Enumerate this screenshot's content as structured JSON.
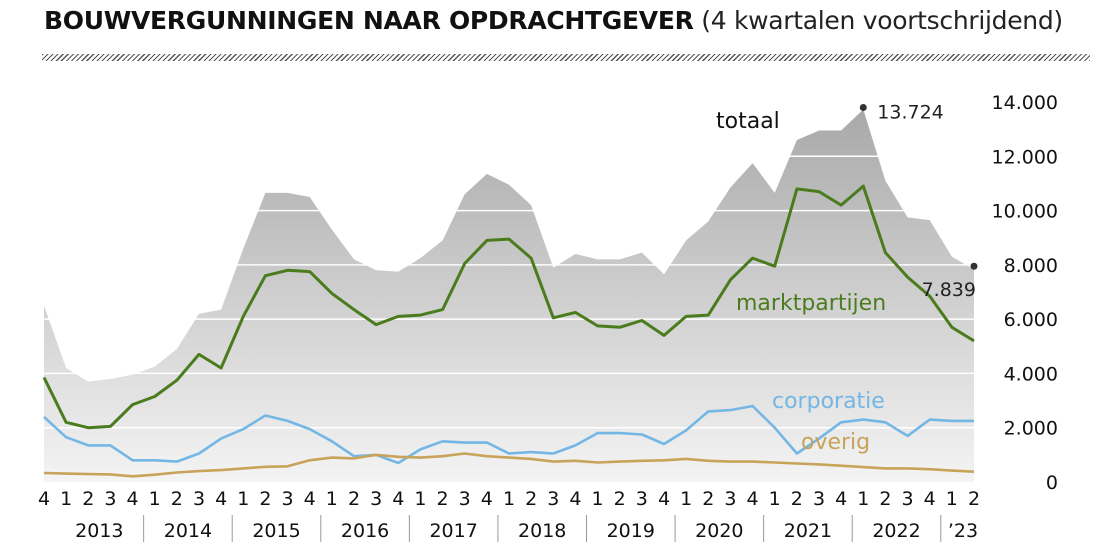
{
  "title": {
    "bold": "BOUWVERGUNNINGEN NAAR OPDRACHTGEVER",
    "light": "(4 kwartalen voortschrijdend)"
  },
  "colors": {
    "totaal_area": "#c8c8c8",
    "marktpartijen": "#4a7c1e",
    "corporatie": "#74b7e4",
    "overig": "#c8a35a",
    "grid": "#ffffff"
  },
  "chart_data": {
    "type": "area",
    "x": [
      "2012-Q4",
      "2013-Q1",
      "2013-Q2",
      "2013-Q3",
      "2013-Q4",
      "2014-Q1",
      "2014-Q2",
      "2014-Q3",
      "2014-Q4",
      "2015-Q1",
      "2015-Q2",
      "2015-Q3",
      "2015-Q4",
      "2016-Q1",
      "2016-Q2",
      "2016-Q3",
      "2016-Q4",
      "2017-Q1",
      "2017-Q2",
      "2017-Q3",
      "2017-Q4",
      "2018-Q1",
      "2018-Q2",
      "2018-Q3",
      "2018-Q4",
      "2019-Q1",
      "2019-Q2",
      "2019-Q3",
      "2019-Q4",
      "2020-Q1",
      "2020-Q2",
      "2020-Q3",
      "2020-Q4",
      "2021-Q1",
      "2021-Q2",
      "2021-Q3",
      "2021-Q4",
      "2022-Q1",
      "2022-Q2",
      "2022-Q3",
      "2022-Q4",
      "2023-Q1",
      "2023-Q2"
    ],
    "quarter_labels": [
      "4",
      "1",
      "2",
      "3",
      "4",
      "1",
      "2",
      "3",
      "4",
      "1",
      "2",
      "3",
      "4",
      "1",
      "2",
      "3",
      "4",
      "1",
      "2",
      "3",
      "4",
      "1",
      "2",
      "3",
      "4",
      "1",
      "2",
      "3",
      "4",
      "1",
      "2",
      "3",
      "4",
      "1",
      "2",
      "3",
      "4",
      "1",
      "2",
      "3",
      "4",
      "1",
      "2"
    ],
    "year_labels": [
      "2013",
      "2014",
      "2015",
      "2016",
      "2017",
      "2018",
      "2019",
      "2020",
      "2021",
      "2022",
      "’23"
    ],
    "ylim": [
      0,
      14000
    ],
    "yticks": [
      "0",
      "2.000",
      "4.000",
      "6.000",
      "8.000",
      "10.000",
      "12.000",
      "14.000"
    ],
    "grid": true,
    "series": [
      {
        "name": "totaal",
        "style": "area",
        "values": [
          6500,
          4200,
          3700,
          3800,
          3950,
          4250,
          4900,
          6200,
          6350,
          8600,
          10650,
          10650,
          10500,
          9300,
          8200,
          7800,
          7750,
          8250,
          8900,
          10600,
          11350,
          10950,
          10200,
          7900,
          8400,
          8200,
          8200,
          8450,
          7650,
          8900,
          9600,
          10850,
          11750,
          10650,
          12600,
          12950,
          12950,
          13724,
          11100,
          9750,
          9650,
          8300,
          7839
        ]
      },
      {
        "name": "marktpartijen",
        "style": "line",
        "values": [
          3850,
          2200,
          2000,
          2050,
          2850,
          3150,
          3750,
          4700,
          4200,
          6100,
          7600,
          7800,
          7750,
          6950,
          6350,
          5800,
          6100,
          6150,
          6350,
          8050,
          8900,
          8950,
          8250,
          6050,
          6250,
          5750,
          5700,
          5950,
          5400,
          6100,
          6150,
          7450,
          8250,
          7950,
          10800,
          10700,
          10200,
          10900,
          8450,
          7550,
          6850,
          5700,
          5200
        ]
      },
      {
        "name": "corporatie",
        "style": "line",
        "values": [
          2400,
          1650,
          1350,
          1350,
          800,
          800,
          750,
          1050,
          1600,
          1950,
          2450,
          2250,
          1950,
          1500,
          950,
          1000,
          700,
          1200,
          1500,
          1450,
          1450,
          1050,
          1100,
          1050,
          1350,
          1800,
          1800,
          1750,
          1400,
          1900,
          2600,
          2650,
          2800,
          2000,
          1050,
          1600,
          2200,
          2300,
          2200,
          1700,
          2300,
          2250,
          2250
        ]
      },
      {
        "name": "overig",
        "style": "line",
        "values": [
          330,
          310,
          290,
          280,
          210,
          270,
          350,
          400,
          440,
          500,
          560,
          580,
          800,
          900,
          870,
          1000,
          930,
          900,
          950,
          1050,
          950,
          900,
          850,
          750,
          780,
          720,
          750,
          780,
          800,
          850,
          780,
          750,
          750,
          720,
          680,
          650,
          600,
          550,
          500,
          500,
          470,
          420,
          380
        ]
      }
    ],
    "annotations": {
      "peak_label": "13.724",
      "last_label": "7.839",
      "totaal_label": "totaal",
      "markt_label": "marktpartijen",
      "corp_label": "corporatie",
      "overig_label": "overig"
    }
  }
}
